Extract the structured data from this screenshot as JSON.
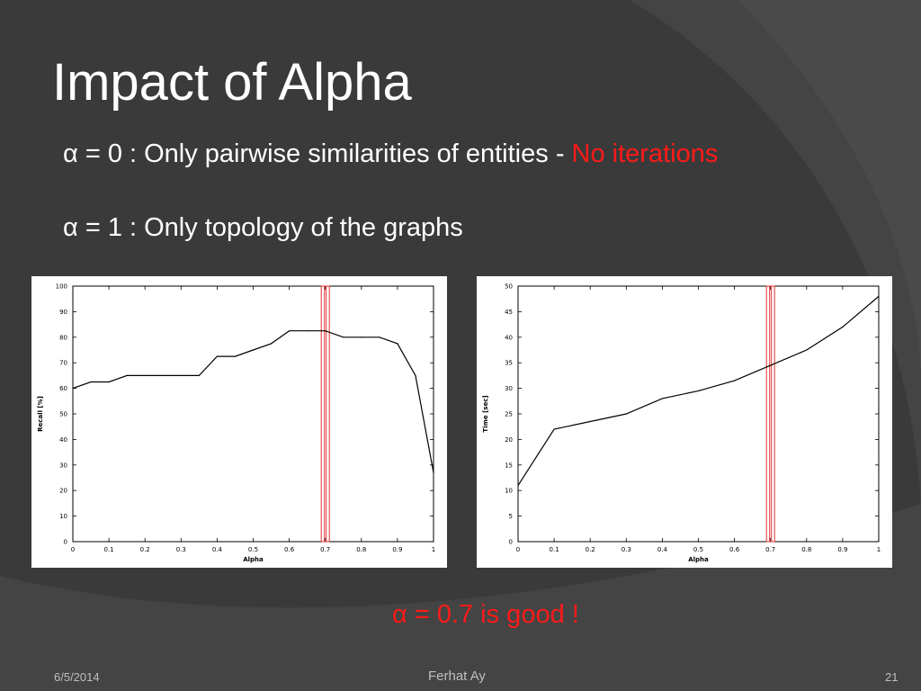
{
  "slide": {
    "title": "Impact of Alpha",
    "bullet1": {
      "symbol": "α",
      "text": " = 0 : Only pairwise similarities of entities - ",
      "highlight": "No iterations"
    },
    "bullet2": {
      "symbol": "α",
      "text": " = 1 : Only topology of the graphs"
    },
    "conclusion": "α = 0.7 is good !",
    "footer": {
      "date": "6/5/2014",
      "author": "Ferhat Ay",
      "page": "21"
    }
  },
  "colors": {
    "background": "#3a3a3a",
    "text": "#ffffff",
    "highlight": "#ff1a1a",
    "marker": "#e03030"
  },
  "chart_data": [
    {
      "type": "line",
      "xlabel": "Alpha",
      "ylabel": "Recall [%]",
      "xlim": [
        0,
        1
      ],
      "ylim": [
        0,
        100
      ],
      "xticks": [
        0,
        0.1,
        0.2,
        0.3,
        0.4,
        0.5,
        0.6,
        0.7,
        0.8,
        0.9,
        1
      ],
      "xtick_labels": [
        "0",
        "0.1",
        "0.2",
        "0.3",
        "0.4",
        "0.5",
        "0.6",
        "0.7",
        "0.8",
        "0.9",
        "1"
      ],
      "yticks": [
        0,
        10,
        20,
        30,
        40,
        50,
        60,
        70,
        80,
        90,
        100
      ],
      "ytick_labels": [
        "0",
        "10",
        "20",
        "30",
        "40",
        "50",
        "60",
        "70",
        "80",
        "90",
        "100"
      ],
      "grid": false,
      "x": [
        0,
        0.05,
        0.1,
        0.15,
        0.2,
        0.25,
        0.3,
        0.35,
        0.4,
        0.45,
        0.5,
        0.55,
        0.6,
        0.65,
        0.7,
        0.75,
        0.8,
        0.85,
        0.9,
        0.95,
        1.0
      ],
      "values": [
        60,
        62.5,
        62.5,
        65,
        65,
        65,
        65,
        65,
        72.5,
        72.5,
        75,
        77.5,
        82.5,
        82.5,
        82.5,
        80,
        80,
        80,
        77.5,
        65,
        27
      ],
      "highlight_x": 0.7
    },
    {
      "type": "line",
      "xlabel": "Alpha",
      "ylabel": "Time [sec]",
      "xlim": [
        0,
        1
      ],
      "ylim": [
        0,
        50
      ],
      "xticks": [
        0,
        0.1,
        0.2,
        0.3,
        0.4,
        0.5,
        0.6,
        0.7,
        0.8,
        0.9,
        1
      ],
      "xtick_labels": [
        "0",
        "0.1",
        "0.2",
        "0.3",
        "0.4",
        "0.5",
        "0.6",
        "0.7",
        "0.8",
        "0.9",
        "1"
      ],
      "yticks": [
        0,
        5,
        10,
        15,
        20,
        25,
        30,
        35,
        40,
        45,
        50
      ],
      "ytick_labels": [
        "0",
        "5",
        "10",
        "15",
        "20",
        "25",
        "30",
        "35",
        "40",
        "45",
        "50"
      ],
      "grid": false,
      "x": [
        0,
        0.1,
        0.2,
        0.3,
        0.4,
        0.5,
        0.6,
        0.7,
        0.8,
        0.9,
        1.0
      ],
      "values": [
        11,
        22,
        23.5,
        25,
        28,
        29.5,
        31.5,
        34.5,
        37.5,
        42,
        48
      ],
      "highlight_x": 0.7
    }
  ]
}
